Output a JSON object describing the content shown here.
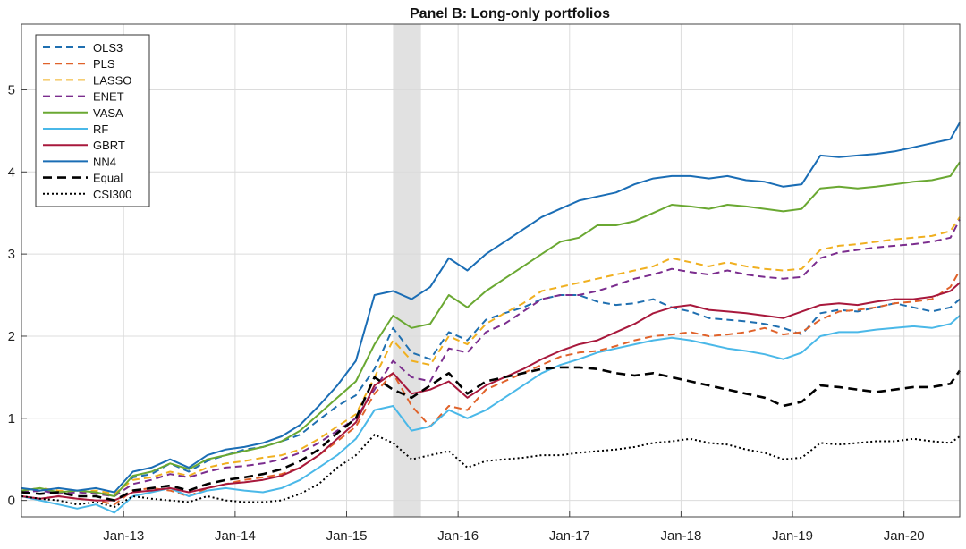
{
  "chart_data": {
    "type": "line",
    "title": "Panel B: Long-only portfolios",
    "xlabel": "",
    "ylabel": "",
    "x_ticks": [
      "Jan-13",
      "Jan-14",
      "Jan-15",
      "Jan-16",
      "Jan-17",
      "Jan-18",
      "Jan-19",
      "Jan-20"
    ],
    "y_ticks": [
      0,
      1,
      2,
      3,
      4,
      5
    ],
    "ylim": [
      -0.2,
      5.8
    ],
    "xlim": [
      "Feb-12",
      "Jul-20"
    ],
    "grid": true,
    "legend_position": "top-left",
    "shaded_period": [
      "Jun-15",
      "Sep-15"
    ],
    "x": [
      "Feb-12",
      "Apr-12",
      "Jun-12",
      "Aug-12",
      "Oct-12",
      "Dec-12",
      "Feb-13",
      "Apr-13",
      "Jun-13",
      "Aug-13",
      "Oct-13",
      "Dec-13",
      "Feb-14",
      "Apr-14",
      "Jun-14",
      "Aug-14",
      "Oct-14",
      "Dec-14",
      "Feb-15",
      "Apr-15",
      "Jun-15",
      "Aug-15",
      "Oct-15",
      "Dec-15",
      "Feb-16",
      "Apr-16",
      "Jun-16",
      "Aug-16",
      "Oct-16",
      "Dec-16",
      "Feb-17",
      "Apr-17",
      "Jun-17",
      "Aug-17",
      "Oct-17",
      "Dec-17",
      "Feb-18",
      "Apr-18",
      "Jun-18",
      "Aug-18",
      "Oct-18",
      "Dec-18",
      "Feb-19",
      "Apr-19",
      "Jun-19",
      "Aug-19",
      "Oct-19",
      "Dec-19",
      "Feb-20",
      "Apr-20",
      "Jun-20",
      "Jul-20"
    ],
    "series": [
      {
        "name": "OLS3",
        "color": "#1f6fb0",
        "dash": "dashed",
        "width": 2,
        "values": [
          0.1,
          0.12,
          0.1,
          0.12,
          0.1,
          0.06,
          0.28,
          0.32,
          0.45,
          0.35,
          0.48,
          0.55,
          0.62,
          0.65,
          0.72,
          0.8,
          0.98,
          1.15,
          1.28,
          1.6,
          2.1,
          1.8,
          1.72,
          2.05,
          1.95,
          2.2,
          2.28,
          2.35,
          2.45,
          2.5,
          2.5,
          2.42,
          2.38,
          2.4,
          2.45,
          2.35,
          2.3,
          2.22,
          2.2,
          2.18,
          2.15,
          2.1,
          2.02,
          2.28,
          2.32,
          2.3,
          2.35,
          2.4,
          2.35,
          2.3,
          2.35,
          2.45
        ]
      },
      {
        "name": "PLS",
        "color": "#e0622a",
        "dash": "dashed",
        "width": 2,
        "values": [
          0.05,
          0.02,
          0.05,
          0.02,
          0.0,
          -0.05,
          0.12,
          0.15,
          0.12,
          0.05,
          0.15,
          0.2,
          0.25,
          0.28,
          0.32,
          0.4,
          0.55,
          0.72,
          0.9,
          1.3,
          1.55,
          1.15,
          0.9,
          1.15,
          1.1,
          1.35,
          1.45,
          1.55,
          1.65,
          1.75,
          1.8,
          1.82,
          1.88,
          1.95,
          2.0,
          2.02,
          2.05,
          2.0,
          2.02,
          2.05,
          2.1,
          2.02,
          2.05,
          2.2,
          2.3,
          2.32,
          2.35,
          2.4,
          2.42,
          2.45,
          2.6,
          2.8
        ]
      },
      {
        "name": "LASSO",
        "color": "#f0b020",
        "dash": "dashed",
        "width": 2,
        "values": [
          0.12,
          0.15,
          0.12,
          0.1,
          0.12,
          0.08,
          0.25,
          0.28,
          0.35,
          0.3,
          0.4,
          0.45,
          0.48,
          0.52,
          0.55,
          0.62,
          0.75,
          0.9,
          1.05,
          1.5,
          1.95,
          1.7,
          1.65,
          2.0,
          1.9,
          2.15,
          2.28,
          2.4,
          2.55,
          2.6,
          2.65,
          2.7,
          2.75,
          2.8,
          2.85,
          2.95,
          2.9,
          2.85,
          2.9,
          2.85,
          2.82,
          2.8,
          2.82,
          3.05,
          3.1,
          3.12,
          3.15,
          3.18,
          3.2,
          3.22,
          3.28,
          3.45
        ]
      },
      {
        "name": "ENET",
        "color": "#7b2d8e",
        "dash": "dashed",
        "width": 2,
        "values": [
          0.1,
          0.12,
          0.08,
          0.1,
          0.08,
          0.05,
          0.2,
          0.25,
          0.32,
          0.28,
          0.35,
          0.4,
          0.42,
          0.45,
          0.5,
          0.58,
          0.7,
          0.85,
          1.0,
          1.35,
          1.7,
          1.5,
          1.45,
          1.85,
          1.8,
          2.05,
          2.15,
          2.3,
          2.45,
          2.5,
          2.5,
          2.55,
          2.62,
          2.7,
          2.75,
          2.82,
          2.78,
          2.75,
          2.8,
          2.75,
          2.72,
          2.7,
          2.72,
          2.95,
          3.02,
          3.05,
          3.08,
          3.1,
          3.12,
          3.15,
          3.2,
          3.42
        ]
      },
      {
        "name": "VASA",
        "color": "#6aa832",
        "dash": "solid",
        "width": 2,
        "values": [
          0.12,
          0.15,
          0.1,
          0.12,
          0.1,
          0.05,
          0.3,
          0.35,
          0.45,
          0.38,
          0.5,
          0.55,
          0.6,
          0.65,
          0.72,
          0.85,
          1.05,
          1.25,
          1.45,
          1.9,
          2.25,
          2.1,
          2.15,
          2.5,
          2.35,
          2.55,
          2.7,
          2.85,
          3.0,
          3.15,
          3.2,
          3.35,
          3.35,
          3.4,
          3.5,
          3.6,
          3.58,
          3.55,
          3.6,
          3.58,
          3.55,
          3.52,
          3.55,
          3.8,
          3.82,
          3.8,
          3.82,
          3.85,
          3.88,
          3.9,
          3.95,
          4.12
        ]
      },
      {
        "name": "RF",
        "color": "#4ab8e8",
        "dash": "solid",
        "width": 2,
        "values": [
          0.05,
          0.0,
          -0.05,
          -0.1,
          -0.05,
          -0.15,
          0.05,
          0.1,
          0.15,
          0.05,
          0.12,
          0.15,
          0.12,
          0.1,
          0.15,
          0.25,
          0.4,
          0.55,
          0.75,
          1.1,
          1.15,
          0.85,
          0.9,
          1.1,
          1.0,
          1.1,
          1.25,
          1.4,
          1.55,
          1.65,
          1.72,
          1.8,
          1.85,
          1.9,
          1.95,
          1.98,
          1.95,
          1.9,
          1.85,
          1.82,
          1.78,
          1.72,
          1.8,
          2.0,
          2.05,
          2.05,
          2.08,
          2.1,
          2.12,
          2.1,
          2.15,
          2.25
        ]
      },
      {
        "name": "GBRT",
        "color": "#a8183c",
        "dash": "solid",
        "width": 2,
        "values": [
          0.05,
          0.02,
          0.05,
          0.02,
          0.0,
          0.0,
          0.1,
          0.12,
          0.15,
          0.1,
          0.15,
          0.2,
          0.22,
          0.25,
          0.3,
          0.4,
          0.55,
          0.75,
          0.95,
          1.4,
          1.55,
          1.3,
          1.35,
          1.45,
          1.25,
          1.4,
          1.5,
          1.6,
          1.72,
          1.82,
          1.9,
          1.95,
          2.05,
          2.15,
          2.28,
          2.35,
          2.38,
          2.32,
          2.3,
          2.28,
          2.25,
          2.22,
          2.3,
          2.38,
          2.4,
          2.38,
          2.42,
          2.45,
          2.45,
          2.48,
          2.55,
          2.65
        ]
      },
      {
        "name": "NN4",
        "color": "#1a6db5",
        "dash": "solid",
        "width": 2,
        "values": [
          0.15,
          0.12,
          0.15,
          0.12,
          0.15,
          0.1,
          0.35,
          0.4,
          0.5,
          0.4,
          0.55,
          0.62,
          0.65,
          0.7,
          0.78,
          0.92,
          1.15,
          1.4,
          1.7,
          2.5,
          2.55,
          2.45,
          2.6,
          2.95,
          2.8,
          3.0,
          3.15,
          3.3,
          3.45,
          3.55,
          3.65,
          3.7,
          3.75,
          3.85,
          3.92,
          3.95,
          3.95,
          3.92,
          3.95,
          3.9,
          3.88,
          3.82,
          3.85,
          4.2,
          4.18,
          4.2,
          4.22,
          4.25,
          4.3,
          4.35,
          4.4,
          4.6
        ]
      },
      {
        "name": "Equal",
        "color": "#000000",
        "dash": "bolddash",
        "width": 2.6,
        "values": [
          0.1,
          0.08,
          0.1,
          0.05,
          0.05,
          0.0,
          0.12,
          0.15,
          0.18,
          0.12,
          0.2,
          0.25,
          0.28,
          0.32,
          0.38,
          0.48,
          0.62,
          0.82,
          1.0,
          1.5,
          1.35,
          1.25,
          1.4,
          1.55,
          1.3,
          1.45,
          1.5,
          1.55,
          1.6,
          1.62,
          1.62,
          1.6,
          1.55,
          1.52,
          1.55,
          1.5,
          1.45,
          1.4,
          1.35,
          1.3,
          1.25,
          1.15,
          1.2,
          1.4,
          1.38,
          1.35,
          1.32,
          1.35,
          1.38,
          1.38,
          1.42,
          1.58
        ]
      },
      {
        "name": "CSI300",
        "color": "#000000",
        "dash": "dotted",
        "width": 2,
        "values": [
          0.05,
          0.02,
          0.0,
          -0.05,
          -0.02,
          -0.08,
          0.05,
          0.02,
          0.0,
          -0.02,
          0.05,
          0.0,
          -0.02,
          -0.02,
          0.0,
          0.08,
          0.2,
          0.4,
          0.55,
          0.8,
          0.7,
          0.5,
          0.55,
          0.6,
          0.4,
          0.48,
          0.5,
          0.52,
          0.55,
          0.55,
          0.58,
          0.6,
          0.62,
          0.65,
          0.7,
          0.72,
          0.75,
          0.7,
          0.68,
          0.62,
          0.58,
          0.5,
          0.52,
          0.7,
          0.68,
          0.7,
          0.72,
          0.72,
          0.75,
          0.72,
          0.7,
          0.78
        ]
      }
    ]
  }
}
